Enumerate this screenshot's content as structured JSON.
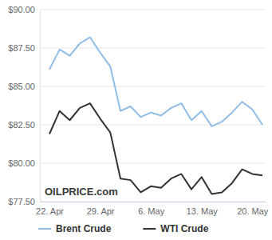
{
  "chart_data": {
    "type": "line",
    "watermark": "OILPRICE.com",
    "categories": [
      "22. Apr",
      null,
      null,
      null,
      null,
      "29. Apr",
      null,
      null,
      null,
      null,
      "6. May",
      null,
      null,
      null,
      null,
      "13. May",
      null,
      null,
      null,
      null,
      "20. May",
      null
    ],
    "series": [
      {
        "name": "Brent Crude",
        "color": "#8fbde8",
        "values": [
          86.1,
          87.4,
          87.0,
          87.8,
          88.2,
          87.2,
          86.3,
          83.4,
          83.7,
          83.0,
          83.3,
          83.1,
          83.6,
          83.9,
          82.8,
          83.4,
          82.4,
          82.7,
          83.3,
          84.0,
          83.5,
          82.5
        ]
      },
      {
        "name": "WTI Crude",
        "color": "#333333",
        "values": [
          81.9,
          83.4,
          82.8,
          83.6,
          83.9,
          82.9,
          82.0,
          79.0,
          78.9,
          78.1,
          78.5,
          78.4,
          79.0,
          79.3,
          78.3,
          79.1,
          78.0,
          78.1,
          78.7,
          79.6,
          79.3,
          79.2
        ]
      }
    ],
    "ylim": [
      77.5,
      90
    ],
    "yticks": [
      {
        "value": 77.5,
        "label": "$77.50"
      },
      {
        "value": 80,
        "label": "$80.00"
      },
      {
        "value": 82.5,
        "label": "$82.50"
      },
      {
        "value": 85,
        "label": "$85.00"
      },
      {
        "value": 87.5,
        "label": "$87.50"
      },
      {
        "value": 90,
        "label": "$90.00"
      }
    ],
    "grid": true,
    "legend": "bottom"
  }
}
